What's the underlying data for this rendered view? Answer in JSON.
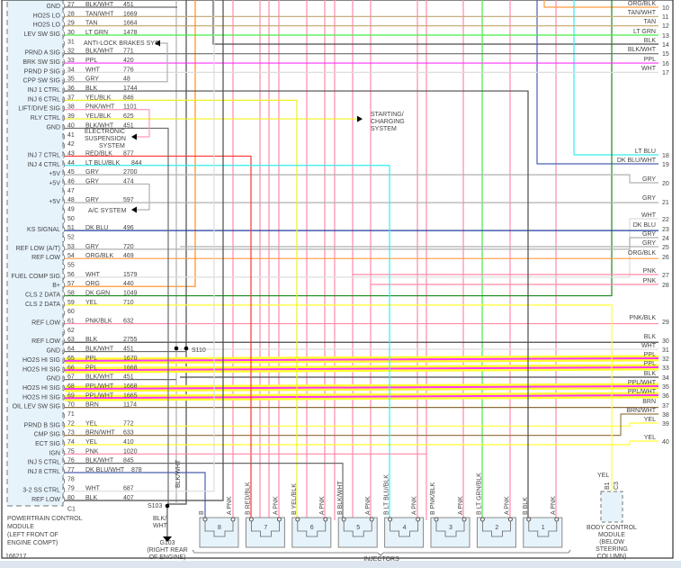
{
  "figure_id": "166217",
  "wire_colors": {
    "BLK": "#4a4a4a",
    "BLK/WHT": "#6a6a6a",
    "TAN": "#c4a46a",
    "TAN/WHT": "#c8ae80",
    "LT GRN": "#44ee44",
    "DK GRN": "#1a8a1a",
    "PPL": "#ff33ff",
    "PPL/WHT": "#ff33ff",
    "WHT": "#dddddd",
    "GRY": "#b0b0b0",
    "YEL": "#ffff33",
    "YEL/BLK": "#f0f020",
    "PNK": "#ff8aa8",
    "PNK/WHT": "#ff9ab4",
    "PNK/BLK": "#ff8aa8",
    "RED/BLK": "#ff3333",
    "LT BLU": "#33eeee",
    "LT BLU/BLK": "#33eeee",
    "DK BLU": "#1f3fa0",
    "DK BLU/WHT": "#4a62b0",
    "ORG": "#ff8c1a",
    "ORG/BLK": "#ff9a40",
    "BRN": "#8b6b3a",
    "BRN/WHT": "#9b7b4a",
    "highlight": "#ffff33"
  },
  "pcm": {
    "name_lines": [
      "POWERTRAIN CONTROL",
      "MODULE",
      "(LEFT FRONT OF",
      "ENGINE COMPT)"
    ],
    "connector": "C1",
    "pins": [
      {
        "num": "27",
        "func": "GND",
        "color": "BLK/WHT",
        "circuit": "451"
      },
      {
        "num": "28",
        "func": "HO2S LO",
        "color": "TAN/WHT",
        "circuit": "1669"
      },
      {
        "num": "29",
        "func": "HO2S LO",
        "color": "TAN",
        "circuit": "1664"
      },
      {
        "num": "30",
        "func": "LEV SW SIG",
        "color": "LT GRN",
        "circuit": "1478"
      },
      {
        "num": "31",
        "func": "",
        "color": "",
        "circuit": ""
      },
      {
        "num": "32",
        "func": "PRND A SIG",
        "color": "BLK/WHT",
        "circuit": "771"
      },
      {
        "num": "33",
        "func": "BRK SW SIG",
        "color": "PPL",
        "circuit": "420"
      },
      {
        "num": "34",
        "func": "PRND P SIG",
        "color": "WHT",
        "circuit": "776"
      },
      {
        "num": "35",
        "func": "CPP SW SIG",
        "color": "GRY",
        "circuit": "48"
      },
      {
        "num": "36",
        "func": "INJ 1 CTRL",
        "color": "BLK",
        "circuit": "1744"
      },
      {
        "num": "37",
        "func": "INJ 6 CTRL",
        "color": "YEL/BLK",
        "circuit": "846"
      },
      {
        "num": "38",
        "func": "LIFT/DIVE SIG",
        "color": "PNK/WHT",
        "circuit": "1101"
      },
      {
        "num": "39",
        "func": "RLY CTRL",
        "color": "YEL/BLK",
        "circuit": "625"
      },
      {
        "num": "40",
        "func": "GND",
        "color": "BLK/WHT",
        "circuit": "451"
      },
      {
        "num": "41",
        "func": "",
        "color": "",
        "circuit": ""
      },
      {
        "num": "42",
        "func": "",
        "color": "",
        "circuit": ""
      },
      {
        "num": "43",
        "func": "INJ 7 CTRL",
        "color": "RED/BLK",
        "circuit": "877"
      },
      {
        "num": "44",
        "func": "INJ 4 CTRL",
        "color": "LT BLU/BLK",
        "circuit": "844"
      },
      {
        "num": "45",
        "func": "+5V",
        "color": "GRY",
        "circuit": "2700"
      },
      {
        "num": "46",
        "func": "+5V",
        "color": "GRY",
        "circuit": "474"
      },
      {
        "num": "47",
        "func": "",
        "color": "",
        "circuit": ""
      },
      {
        "num": "48",
        "func": "+5V",
        "color": "GRY",
        "circuit": "597"
      },
      {
        "num": "49",
        "func": "",
        "color": "",
        "circuit": ""
      },
      {
        "num": "50",
        "func": "",
        "color": "",
        "circuit": ""
      },
      {
        "num": "51",
        "func": "KS SIGNAL",
        "color": "DK BLU",
        "circuit": "496"
      },
      {
        "num": "52",
        "func": "",
        "color": "",
        "circuit": ""
      },
      {
        "num": "53",
        "func": "REF LOW (A/T)",
        "color": "GRY",
        "circuit": "720"
      },
      {
        "num": "54",
        "func": "REF LOW",
        "color": "ORG/BLK",
        "circuit": "469"
      },
      {
        "num": "55",
        "func": "",
        "color": "",
        "circuit": ""
      },
      {
        "num": "56",
        "func": "FUEL COMP SIG",
        "color": "WHT",
        "circuit": "1579"
      },
      {
        "num": "57",
        "func": "B+",
        "color": "ORG",
        "circuit": "440"
      },
      {
        "num": "58",
        "func": "CLS 2 DATA",
        "color": "DK GRN",
        "circuit": "1049"
      },
      {
        "num": "59",
        "func": "CLS 2 DATA",
        "color": "YEL",
        "circuit": "710"
      },
      {
        "num": "60",
        "func": "",
        "color": "",
        "circuit": ""
      },
      {
        "num": "61",
        "func": "REF LOW",
        "color": "PNK/BLK",
        "circuit": "632"
      },
      {
        "num": "62",
        "func": "",
        "color": "",
        "circuit": ""
      },
      {
        "num": "63",
        "func": "REF LOW",
        "color": "BLK",
        "circuit": "2755"
      },
      {
        "num": "64",
        "func": "GND",
        "color": "BLK/WHT",
        "circuit": "451"
      },
      {
        "num": "65",
        "func": "HO2S HI SIG",
        "color": "PPL",
        "circuit": "1670"
      },
      {
        "num": "66",
        "func": "HO2S HI SIG",
        "color": "PPL",
        "circuit": "1668"
      },
      {
        "num": "67",
        "func": "GND",
        "color": "BLK/WHT",
        "circuit": "451"
      },
      {
        "num": "68",
        "func": "HO2S HI SIG",
        "color": "PPL/WHT",
        "circuit": "1668"
      },
      {
        "num": "69",
        "func": "HO2S HI SIG",
        "color": "PPL/WHT",
        "circuit": "1665"
      },
      {
        "num": "70",
        "func": "OIL LEV SW SIG",
        "color": "BRN",
        "circuit": "1174"
      },
      {
        "num": "71",
        "func": "",
        "color": "",
        "circuit": ""
      },
      {
        "num": "72",
        "func": "PRND B SIG",
        "color": "YEL",
        "circuit": "772"
      },
      {
        "num": "73",
        "func": "CMP SIG",
        "color": "BRN/WHT",
        "circuit": "633"
      },
      {
        "num": "74",
        "func": "ECT SIG",
        "color": "YEL",
        "circuit": "410"
      },
      {
        "num": "75",
        "func": "IGN",
        "color": "PNK",
        "circuit": "1020"
      },
      {
        "num": "76",
        "func": "INJ 5 CTRL",
        "color": "BLK/WHT",
        "circuit": "845"
      },
      {
        "num": "77",
        "func": "INJ 8 CTRL",
        "color": "DK BLU/WHT",
        "circuit": "878"
      },
      {
        "num": "78",
        "func": "",
        "color": "",
        "circuit": ""
      },
      {
        "num": "79",
        "func": "3-2 SS CTRL",
        "color": "WHT",
        "circuit": "687"
      },
      {
        "num": "80",
        "func": "REF LOW",
        "color": "BLK",
        "circuit": "407"
      }
    ]
  },
  "right_connector_pins": [
    {
      "num": "10",
      "color": "ORG/BLK"
    },
    {
      "num": "11",
      "color": "TAN/WHT"
    },
    {
      "num": "12",
      "color": "TAN"
    },
    {
      "num": "13",
      "color": "LT GRN"
    },
    {
      "num": "14",
      "color": "BLK"
    },
    {
      "num": "15",
      "color": "BLK/WHT"
    },
    {
      "num": "16",
      "color": "PPL"
    },
    {
      "num": "17",
      "color": "WHT"
    },
    {
      "num": "18",
      "color": "LT BLU"
    },
    {
      "num": "19",
      "color": "DK BLU/WHT"
    },
    {
      "num": "20",
      "color": "GRY"
    },
    {
      "num": "21",
      "color": "GRY"
    },
    {
      "num": "22",
      "color": "WHT"
    },
    {
      "num": "23",
      "color": "DK BLU"
    },
    {
      "num": "24",
      "color": "GRY"
    },
    {
      "num": "25",
      "color": "GRY"
    },
    {
      "num": "26",
      "color": "ORG/BLK"
    },
    {
      "num": "27",
      "color": "PNK"
    },
    {
      "num": "28",
      "color": "PNK"
    },
    {
      "num": "29",
      "color": "PNK/BLK"
    },
    {
      "num": "30",
      "color": "BLK"
    },
    {
      "num": "31",
      "color": "WHT"
    },
    {
      "num": "32",
      "color": "PPL"
    },
    {
      "num": "33",
      "color": "PPL"
    },
    {
      "num": "34",
      "color": "BLK"
    },
    {
      "num": "35",
      "color": "PPL/WHT"
    },
    {
      "num": "36",
      "color": "PPL/WHT"
    },
    {
      "num": "37",
      "color": "BRN"
    },
    {
      "num": "38",
      "color": "BRN/WHT"
    },
    {
      "num": "39",
      "color": "YEL"
    },
    {
      "num": "40",
      "color": "YEL"
    }
  ],
  "injectors": {
    "label": "INJECTORS",
    "items": [
      {
        "num": "8",
        "b": "B",
        "a": "A PNK"
      },
      {
        "num": "7",
        "b": "B RED/BLK",
        "a": "A PNK"
      },
      {
        "num": "6",
        "b": "B YEL/BLK",
        "a": "A PNK"
      },
      {
        "num": "5",
        "b": "B BLK/WHT",
        "a": "A PNK"
      },
      {
        "num": "4",
        "b": "B LT BLU/BLK",
        "a": "A PNK"
      },
      {
        "num": "3",
        "b": "B PNK/BLK",
        "a": "A PNK"
      },
      {
        "num": "2",
        "b": "B LT GRN/BLK",
        "a": "A PNK"
      },
      {
        "num": "1",
        "b": "B BLK",
        "a": "A PNK"
      }
    ]
  },
  "notes": {
    "abs": "ANTI-LOCK BRAKES SYS",
    "suspension": [
      "ELECTRONIC",
      "SUSPENSION",
      "SYSTEM"
    ],
    "ac": "A/C SYSTEM",
    "starting": [
      "STARTING/",
      "CHARGING",
      "SYSTEM"
    ],
    "s110": "S110",
    "s103": "S103",
    "ground_wire_vertical": "BLK/WHT",
    "ground_wire": [
      "BLK/",
      "WHT"
    ],
    "g103": [
      "G103",
      "(RIGHT REAR",
      "OF ENGINE)"
    ]
  },
  "bcm": {
    "wire": "YEL",
    "pin": "B1",
    "connector": "C3",
    "name_lines": [
      "BODY CONTROL",
      "MODULE",
      "(BELOW",
      "STEERING",
      "COLUMN)"
    ]
  }
}
